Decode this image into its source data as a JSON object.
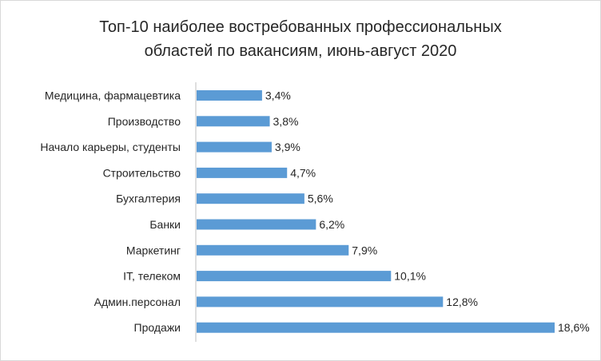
{
  "chart_data": {
    "type": "bar",
    "orientation": "horizontal",
    "title_lines": [
      "Топ-10 наиболее востребованных профессиональных",
      "областей по вакансиям, июнь-август 2020"
    ],
    "categories": [
      "Медицина, фармацевтика",
      "Производство",
      "Начало карьеры, студенты",
      "Строительство",
      "Бухгалтерия",
      "Банки",
      "Маркетинг",
      "IT, телеком",
      "Админ.персонал",
      "Продажи"
    ],
    "values": [
      3.4,
      3.8,
      3.9,
      4.7,
      5.6,
      6.2,
      7.9,
      10.1,
      12.8,
      18.6
    ],
    "value_labels": [
      "3,4%",
      "3,8%",
      "3,9%",
      "4,7%",
      "5,6%",
      "6,2%",
      "7,9%",
      "10,1%",
      "12,8%",
      "18,6%"
    ],
    "xlim": [
      0,
      18.6
    ],
    "grid": false,
    "legend": "none",
    "bar_color": "#5b9bd5"
  }
}
